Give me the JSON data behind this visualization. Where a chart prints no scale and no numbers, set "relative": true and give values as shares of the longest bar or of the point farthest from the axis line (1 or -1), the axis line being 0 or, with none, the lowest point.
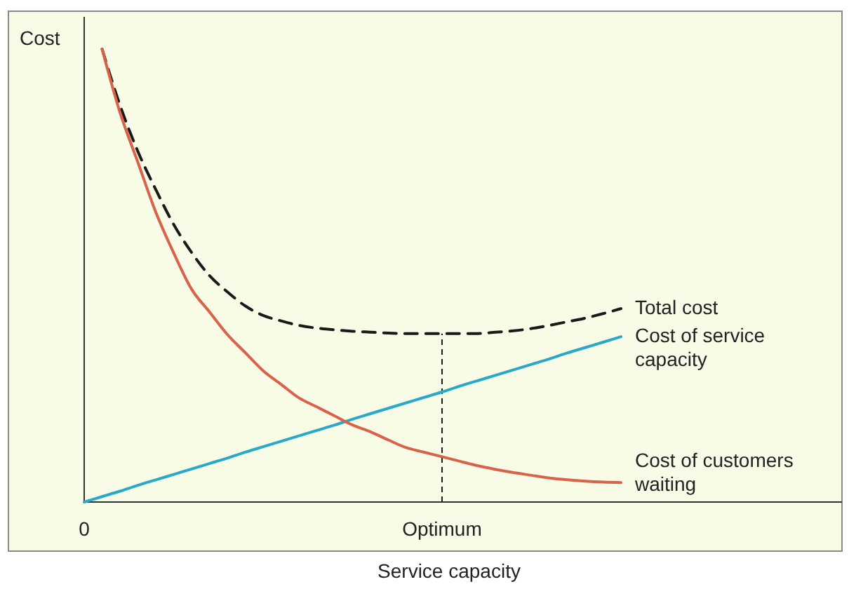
{
  "chart_data": {
    "type": "line",
    "relative": true,
    "ylabel": "Cost",
    "xlabel": "Service capacity",
    "categories": [
      "0",
      null,
      null,
      null,
      null,
      null,
      null,
      null,
      null,
      null,
      null,
      null,
      null,
      null,
      null,
      null,
      null,
      null,
      null,
      null,
      "Optimum",
      null,
      null,
      null,
      null,
      null,
      null,
      null,
      null,
      null,
      null
    ],
    "series": [
      {
        "name": "Total cost",
        "color": "#1a1a1a",
        "line_style": "dashed",
        "values": [
          null,
          1.0,
          0.876,
          0.774,
          0.69,
          0.613,
          0.551,
          0.5,
          0.464,
          0.433,
          0.412,
          0.4,
          0.39,
          0.384,
          0.38,
          0.377,
          0.375,
          0.373,
          0.372,
          0.372,
          0.372,
          0.372,
          0.372,
          0.375,
          0.378,
          0.383,
          0.39,
          0.398,
          0.406,
          0.416,
          0.427
        ]
      },
      {
        "name": "Cost of service capacity",
        "color": "#29a9c9",
        "line_style": "solid",
        "values": [
          0,
          0.012,
          0.024,
          0.037,
          0.049,
          0.061,
          0.073,
          0.085,
          0.097,
          0.11,
          0.122,
          0.134,
          0.146,
          0.158,
          0.17,
          0.183,
          0.195,
          0.207,
          0.219,
          0.231,
          0.243,
          0.256,
          0.268,
          0.28,
          0.292,
          0.304,
          0.316,
          0.329,
          0.341,
          0.353,
          0.365
        ]
      },
      {
        "name": "Cost of customers waiting",
        "color": "#d9634a",
        "line_style": "solid",
        "values": [
          null,
          1.0,
          0.86,
          0.75,
          0.64,
          0.55,
          0.47,
          0.42,
          0.37,
          0.33,
          0.29,
          0.26,
          0.23,
          0.21,
          0.19,
          0.17,
          0.155,
          0.137,
          0.12,
          0.11,
          0.1,
          0.09,
          0.08,
          0.072,
          0.065,
          0.059,
          0.053,
          0.049,
          0.046,
          0.044,
          0.043
        ]
      }
    ],
    "ref_lines": [
      {
        "axis": "x",
        "value": "Optimum",
        "color": "#1a1a1a",
        "line_style": "dashed"
      }
    ]
  }
}
